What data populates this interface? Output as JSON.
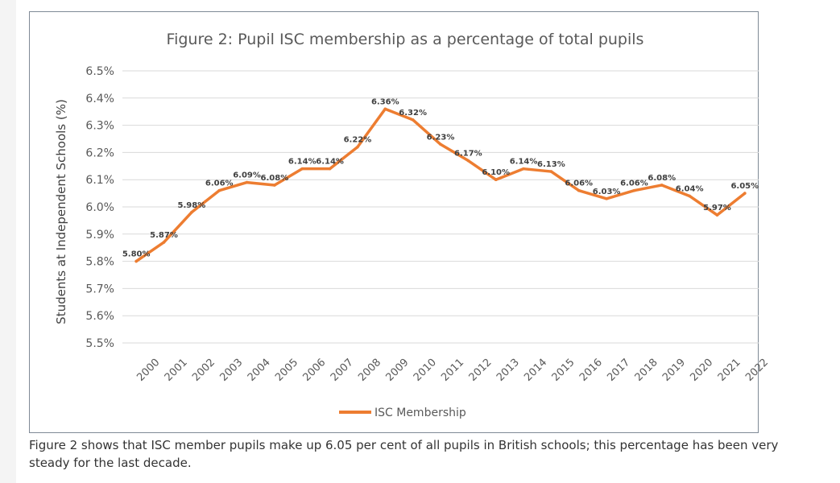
{
  "chart_data": {
    "type": "line",
    "title": "Figure 2: Pupil ISC membership as a percentage of total pupils",
    "ylabel": "Students at Independent Schools (%)",
    "xlabel": "",
    "ylim": [
      5.5,
      6.5
    ],
    "yticks": [
      "6.5%",
      "6.4%",
      "6.3%",
      "6.2%",
      "6.1%",
      "6.0%",
      "5.9%",
      "5.8%",
      "5.7%",
      "5.6%",
      "5.5%"
    ],
    "ytick_values": [
      6.5,
      6.4,
      6.3,
      6.2,
      6.1,
      6.0,
      5.9,
      5.8,
      5.7,
      5.6,
      5.5
    ],
    "categories": [
      "2000",
      "2001",
      "2002",
      "2003",
      "2004",
      "2005",
      "2006",
      "2007",
      "2008",
      "2009",
      "2010",
      "2011",
      "2012",
      "2013",
      "2014",
      "2015",
      "2016",
      "2017",
      "2018",
      "2019",
      "2020",
      "2021",
      "2022"
    ],
    "series": [
      {
        "name": "ISC Membership",
        "color": "#ED7D31",
        "values": [
          5.8,
          5.87,
          5.98,
          6.06,
          6.09,
          6.08,
          6.14,
          6.14,
          6.22,
          6.36,
          6.32,
          6.23,
          6.17,
          6.1,
          6.14,
          6.13,
          6.06,
          6.03,
          6.06,
          6.08,
          6.04,
          5.97,
          6.05
        ],
        "labels": [
          "5.80%",
          "5.87%",
          "5.98%",
          "6.06%",
          "6.09%",
          "6.08%",
          "6.14%",
          "6.14%",
          "6.22%",
          "6.36%",
          "6.32%",
          "6.23%",
          "6.17%",
          "6.10%",
          "6.14%",
          "6.13%",
          "6.06%",
          "6.03%",
          "6.06%",
          "6.08%",
          "6.04%",
          "5.97%",
          "6.05%"
        ]
      }
    ],
    "grid": true,
    "legend": "bottom"
  },
  "caption": "Figure 2 shows that ISC member pupils make up 6.05 per cent of all pupils in British schools; this percentage has been very steady for the last decade."
}
